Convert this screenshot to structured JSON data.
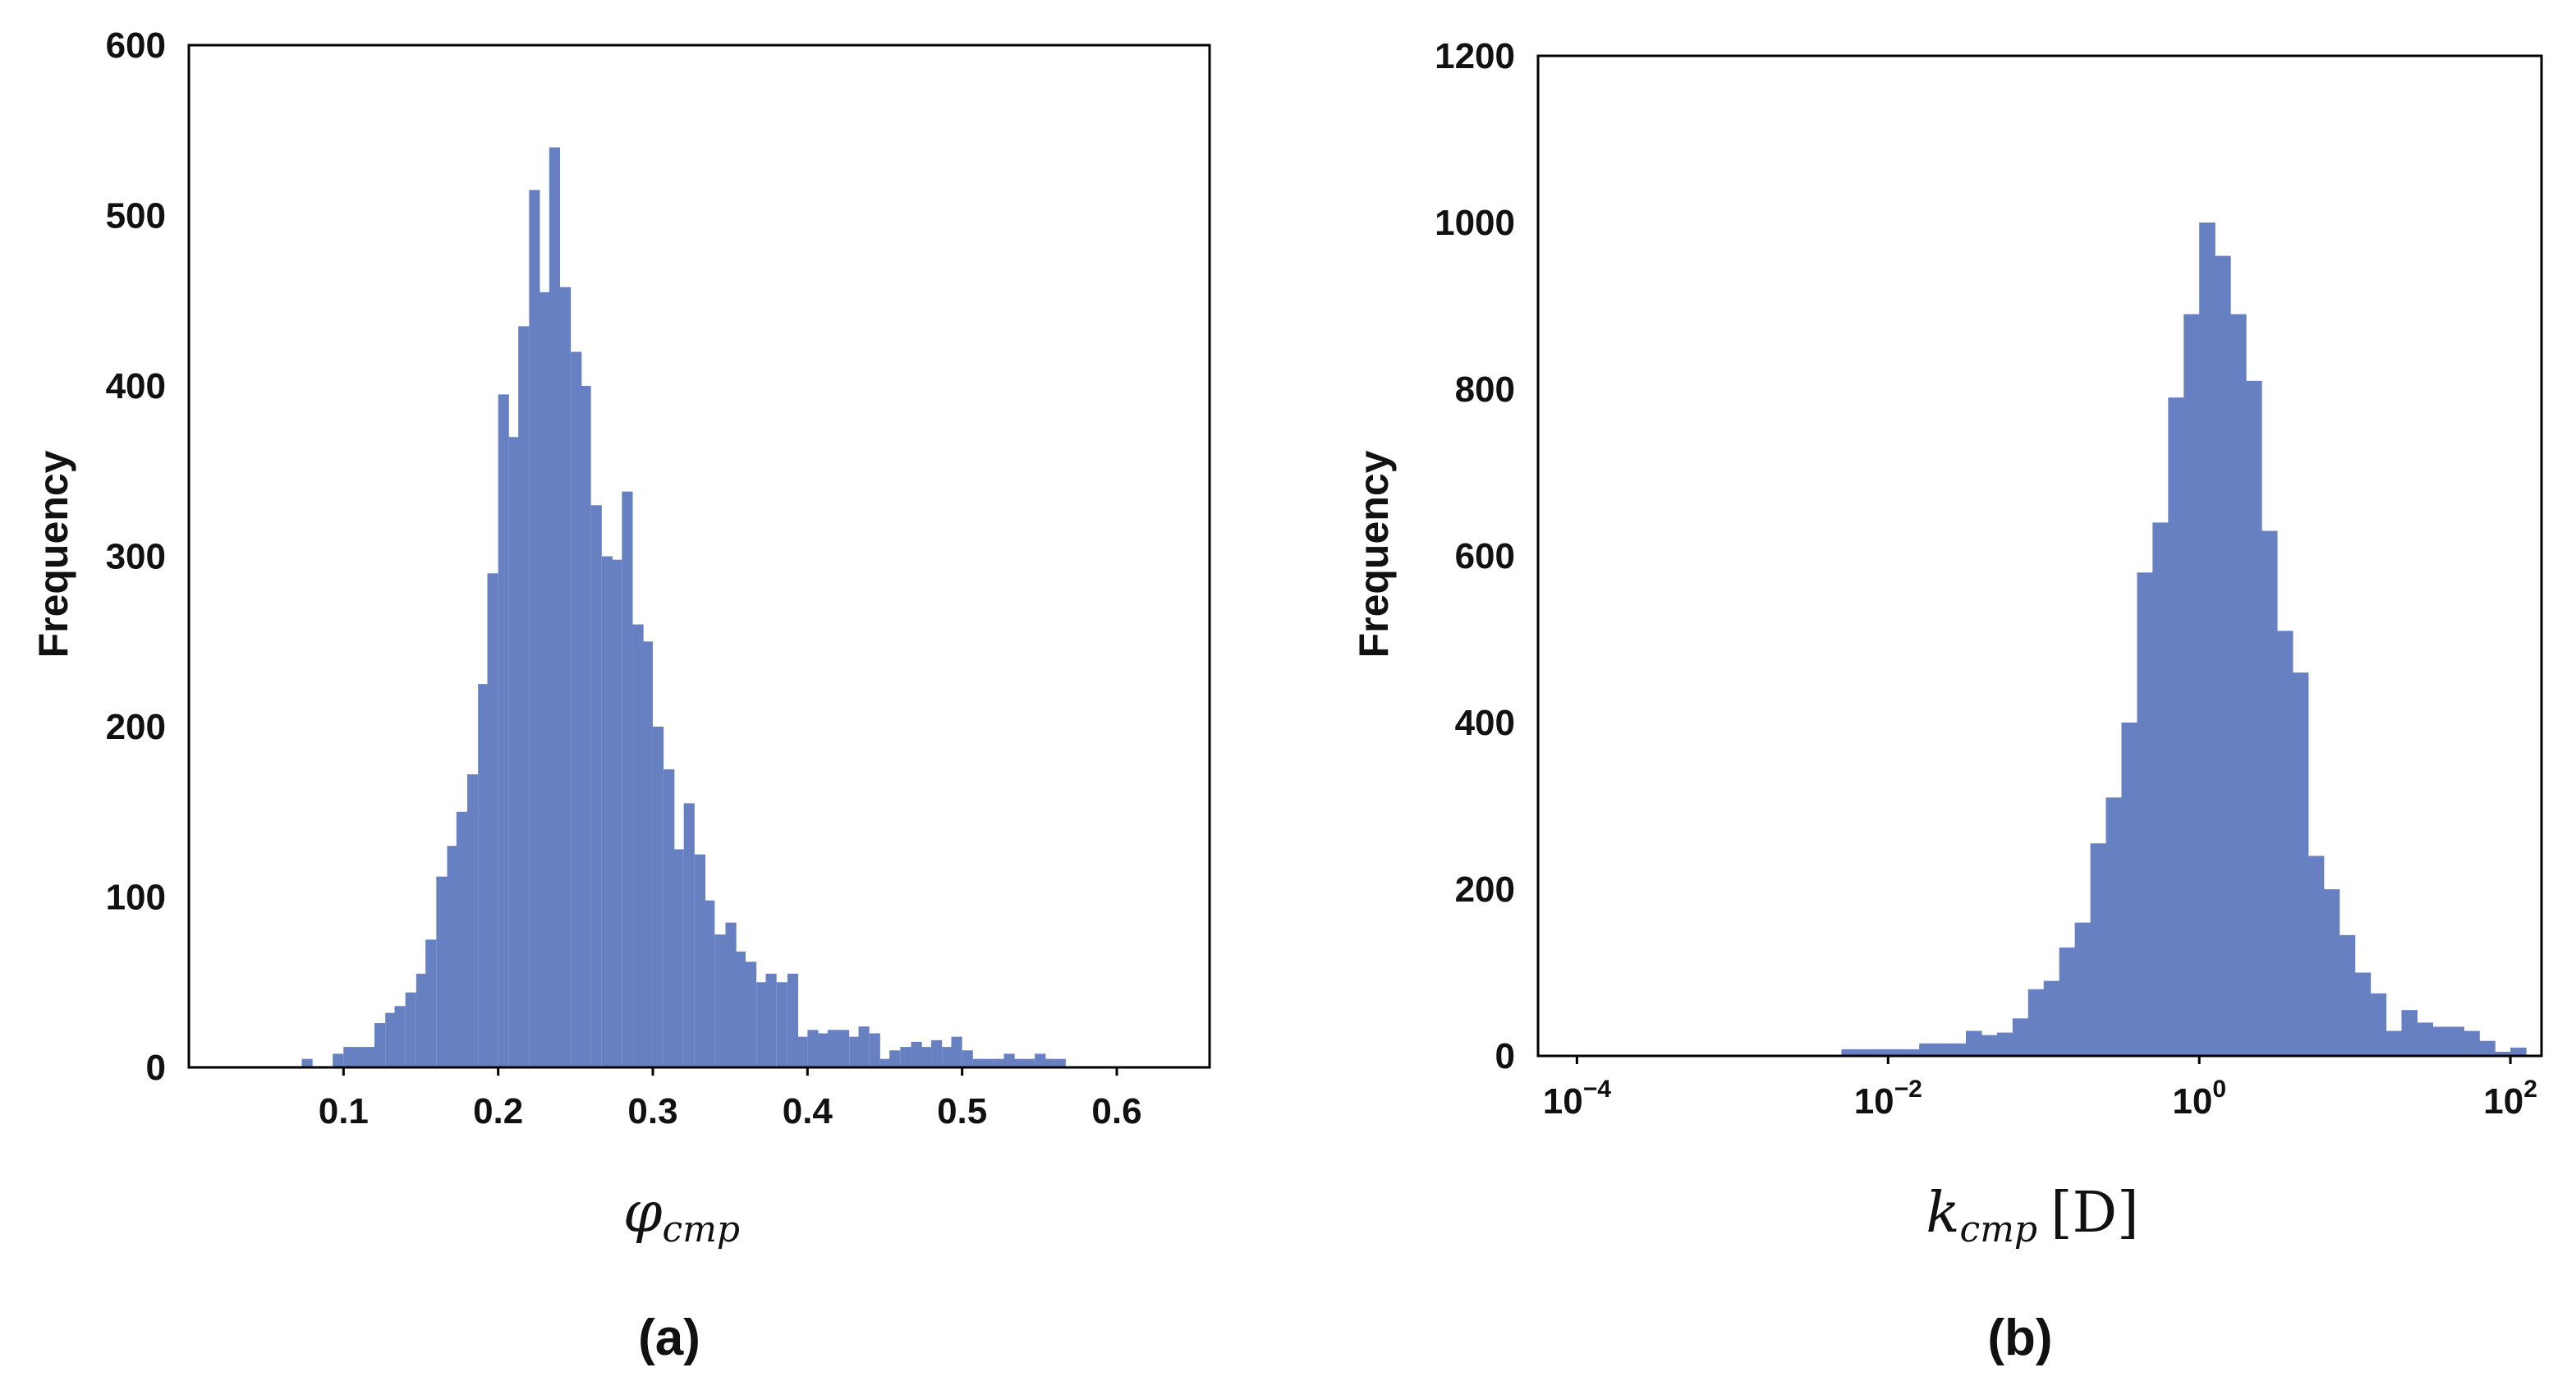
{
  "chart_data": [
    {
      "type": "bar",
      "xlabel_main": "φ",
      "xlabel_sub": "cmp",
      "ylabel": "Frequency",
      "caption": "(a)",
      "xlim": [
        0.0,
        0.66
      ],
      "ylim": [
        0,
        600
      ],
      "x_ticks": [
        "0.1",
        "0.2",
        "0.3",
        "0.4",
        "0.5",
        "0.6"
      ],
      "y_ticks": [
        "0",
        "100",
        "200",
        "300",
        "400",
        "500",
        "600"
      ],
      "bin_width": 0.00667,
      "bin_starts": [
        0.073,
        0.08,
        0.087,
        0.093,
        0.1,
        0.107,
        0.113,
        0.12,
        0.127,
        0.133,
        0.14,
        0.147,
        0.153,
        0.16,
        0.167,
        0.173,
        0.18,
        0.187,
        0.193,
        0.2,
        0.207,
        0.213,
        0.22,
        0.227,
        0.233,
        0.24,
        0.247,
        0.253,
        0.26,
        0.267,
        0.273,
        0.28,
        0.287,
        0.293,
        0.3,
        0.307,
        0.313,
        0.32,
        0.327,
        0.333,
        0.34,
        0.347,
        0.353,
        0.36,
        0.367,
        0.373,
        0.38,
        0.387,
        0.393,
        0.4,
        0.407,
        0.413,
        0.42,
        0.427,
        0.433,
        0.44,
        0.447,
        0.453,
        0.46,
        0.467,
        0.473,
        0.48,
        0.487,
        0.493,
        0.5,
        0.507,
        0.513,
        0.52,
        0.527,
        0.533,
        0.54,
        0.547,
        0.553,
        0.56
      ],
      "values": [
        5,
        0,
        0,
        8,
        12,
        12,
        12,
        26,
        32,
        36,
        44,
        55,
        75,
        112,
        130,
        150,
        172,
        225,
        290,
        395,
        370,
        435,
        515,
        455,
        540,
        458,
        420,
        400,
        330,
        300,
        298,
        338,
        260,
        250,
        200,
        175,
        128,
        155,
        125,
        98,
        78,
        85,
        68,
        62,
        50,
        55,
        50,
        55,
        18,
        22,
        20,
        22,
        22,
        18,
        24,
        20,
        5,
        10,
        12,
        15,
        12,
        16,
        12,
        18,
        10,
        5,
        5,
        5,
        8,
        5,
        5,
        8,
        5,
        5
      ]
    },
    {
      "type": "bar",
      "x_scale": "log",
      "xlabel_main": "k",
      "xlabel_sub": "cmp",
      "xlabel_unit": "[D]",
      "ylabel": "Frequency",
      "caption": "(b)",
      "xlim_log10": [
        -4.25,
        2.2
      ],
      "ylim": [
        0,
        1200
      ],
      "x_ticks": [
        {
          "base": "10",
          "exp": "−4",
          "log10": -4
        },
        {
          "base": "10",
          "exp": "−2",
          "log10": -2
        },
        {
          "base": "10",
          "exp": "0",
          "log10": 0
        },
        {
          "base": "10",
          "exp": "2",
          "log10": 2
        }
      ],
      "y_ticks": [
        "0",
        "200",
        "400",
        "600",
        "800",
        "1000",
        "1200"
      ],
      "bin_width_log10": 0.1,
      "bin_starts_log10": [
        -2.3,
        -2.2,
        -2.1,
        -2.0,
        -1.9,
        -1.8,
        -1.7,
        -1.6,
        -1.5,
        -1.4,
        -1.3,
        -1.2,
        -1.1,
        -1.0,
        -0.9,
        -0.8,
        -0.7,
        -0.6,
        -0.5,
        -0.4,
        -0.3,
        -0.2,
        -0.1,
        0.0,
        0.1,
        0.2,
        0.3,
        0.4,
        0.5,
        0.6,
        0.7,
        0.8,
        0.9,
        1.0,
        1.1,
        1.2,
        1.3,
        1.4,
        1.5,
        1.6,
        1.7,
        1.8,
        1.9,
        2.0
      ],
      "values": [
        8,
        8,
        8,
        8,
        8,
        15,
        15,
        15,
        30,
        25,
        28,
        45,
        80,
        90,
        130,
        160,
        255,
        310,
        400,
        580,
        640,
        790,
        890,
        1000,
        960,
        890,
        810,
        630,
        510,
        460,
        240,
        200,
        145,
        100,
        75,
        30,
        55,
        40,
        35,
        35,
        30,
        18,
        5,
        10
      ]
    }
  ]
}
